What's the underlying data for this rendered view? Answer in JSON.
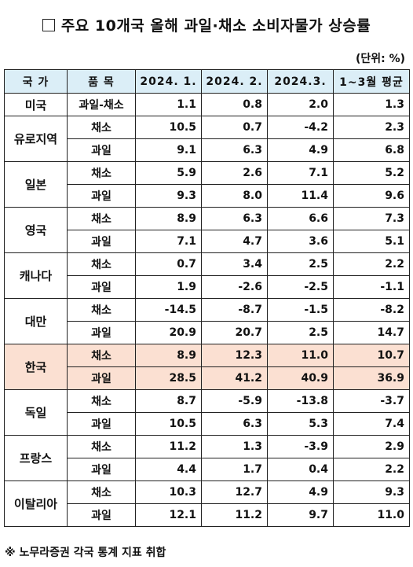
{
  "title": "주요 10개국 올해 과일·채소 소비자물가 상승률",
  "unit": "(단위: %)",
  "headers": [
    "국 가",
    "품 목",
    "2024. 1.",
    "2024. 2.",
    "2024.3.",
    "1~3월 평균"
  ],
  "rows": [
    {
      "country": "미국",
      "item": "과일-채소",
      "v1": "1.1",
      "v2": "0.8",
      "v3": "2.0",
      "avg": "1.3"
    },
    {
      "country": "유로지역",
      "item": "채소",
      "v1": "10.5",
      "v2": "0.7",
      "v3": "-4.2",
      "avg": "2.3"
    },
    {
      "country": "",
      "item": "과일",
      "v1": "9.1",
      "v2": "6.3",
      "v3": "4.9",
      "avg": "6.8"
    },
    {
      "country": "일본",
      "item": "채소",
      "v1": "5.9",
      "v2": "2.6",
      "v3": "7.1",
      "avg": "5.2"
    },
    {
      "country": "",
      "item": "과일",
      "v1": "9.3",
      "v2": "8.0",
      "v3": "11.4",
      "avg": "9.6"
    },
    {
      "country": "영국",
      "item": "채소",
      "v1": "8.9",
      "v2": "6.3",
      "v3": "6.6",
      "avg": "7.3"
    },
    {
      "country": "",
      "item": "과일",
      "v1": "7.1",
      "v2": "4.7",
      "v3": "3.6",
      "avg": "5.1"
    },
    {
      "country": "캐나다",
      "item": "채소",
      "v1": "0.7",
      "v2": "3.4",
      "v3": "2.5",
      "avg": "2.2"
    },
    {
      "country": "",
      "item": "과일",
      "v1": "1.9",
      "v2": "-2.6",
      "v3": "-2.5",
      "avg": "-1.1"
    },
    {
      "country": "대만",
      "item": "채소",
      "v1": "-14.5",
      "v2": "-8.7",
      "v3": "-1.5",
      "avg": "-8.2"
    },
    {
      "country": "",
      "item": "과일",
      "v1": "20.9",
      "v2": "20.7",
      "v3": "2.5",
      "avg": "14.7"
    },
    {
      "country": "한국",
      "item": "채소",
      "v1": "8.9",
      "v2": "12.3",
      "v3": "11.0",
      "avg": "10.7"
    },
    {
      "country": "",
      "item": "과일",
      "v1": "28.5",
      "v2": "41.2",
      "v3": "40.9",
      "avg": "36.9"
    },
    {
      "country": "독일",
      "item": "채소",
      "v1": "8.7",
      "v2": "-5.9",
      "v3": "-13.8",
      "avg": "-3.7"
    },
    {
      "country": "",
      "item": "과일",
      "v1": "10.5",
      "v2": "6.3",
      "v3": "5.3",
      "avg": "7.4"
    },
    {
      "country": "프랑스",
      "item": "채소",
      "v1": "11.2",
      "v2": "1.3",
      "v3": "-3.9",
      "avg": "2.9"
    },
    {
      "country": "",
      "item": "과일",
      "v1": "4.4",
      "v2": "1.7",
      "v3": "0.4",
      "avg": "2.2"
    },
    {
      "country": "이탈리아",
      "item": "채소",
      "v1": "10.3",
      "v2": "12.7",
      "v3": "4.9",
      "avg": "9.3"
    },
    {
      "country": "",
      "item": "과일",
      "v1": "12.1",
      "v2": "11.2",
      "v3": "9.7",
      "avg": "11.0"
    }
  ],
  "note": "※ 노무라증권 각국 통계 지표 취합",
  "colors": {
    "header_bg": "#dbeef7",
    "highlight_bg": "#fbe0d2"
  }
}
